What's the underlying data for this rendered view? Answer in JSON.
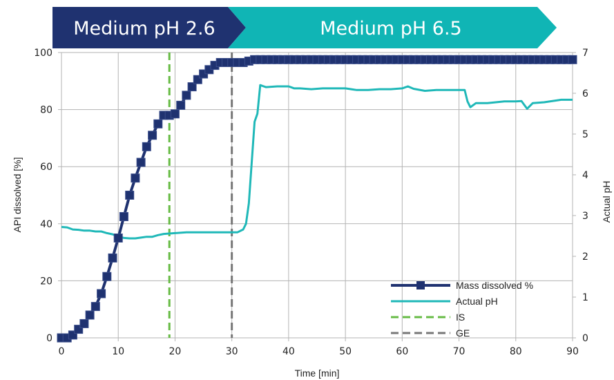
{
  "phases": [
    {
      "label": "Medium pH 2.6",
      "color": "#1f3270",
      "x_start": 0,
      "x_end": 30
    },
    {
      "label": "Medium pH 6.5",
      "color": "#10b5b5",
      "x_start": 30,
      "x_end": 90
    }
  ],
  "chart_data": {
    "type": "line",
    "xlabel": "Time [min]",
    "ylabel": "API dissolved [%]",
    "y2label": "Actual pH",
    "xlim": [
      0,
      90
    ],
    "ylim": [
      0,
      100
    ],
    "y2lim": [
      0,
      7
    ],
    "x_ticks": [
      0,
      10,
      20,
      30,
      40,
      50,
      60,
      70,
      80,
      90
    ],
    "y_ticks": [
      0,
      20,
      40,
      60,
      80,
      100
    ],
    "y2_ticks": [
      0,
      1,
      2,
      3,
      4,
      5,
      6,
      7
    ],
    "grid": true,
    "legend_position": "bottom-right",
    "series": [
      {
        "name": "Mass dissolved %",
        "color": "#1f3270",
        "axis": "left",
        "style": "line-square-markers",
        "x": [
          0,
          1,
          2,
          3,
          4,
          5,
          6,
          7,
          8,
          9,
          10,
          11,
          12,
          13,
          14,
          15,
          16,
          17,
          18,
          19,
          20,
          21,
          22,
          23,
          24,
          25,
          26,
          27,
          28,
          29,
          30,
          31,
          32,
          33,
          34,
          35,
          36,
          37,
          38,
          39,
          40,
          41,
          42,
          43,
          44,
          45,
          46,
          47,
          48,
          49,
          50,
          51,
          52,
          53,
          54,
          55,
          56,
          57,
          58,
          59,
          60,
          61,
          62,
          63,
          64,
          65,
          66,
          67,
          68,
          69,
          70,
          71,
          72,
          73,
          74,
          75,
          76,
          77,
          78,
          79,
          80,
          81,
          82,
          83,
          84,
          85,
          86,
          87,
          88,
          89,
          90
        ],
        "y": [
          0,
          0,
          1,
          3,
          5,
          8,
          11,
          15.5,
          21.5,
          28,
          35,
          42.5,
          50,
          56,
          61.5,
          67,
          71,
          75,
          78,
          78,
          78.5,
          81.5,
          85,
          88,
          90.5,
          92.5,
          94,
          95.5,
          96.5,
          96.5,
          96.5,
          96.5,
          96.5,
          97,
          97.5,
          97.5,
          97.5,
          97.5,
          97.5,
          97.5,
          97.5,
          97.5,
          97.5,
          97.5,
          97.5,
          97.5,
          97.5,
          97.5,
          97.5,
          97.5,
          97.5,
          97.5,
          97.5,
          97.5,
          97.5,
          97.5,
          97.5,
          97.5,
          97.5,
          97.5,
          97.5,
          97.5,
          97.5,
          97.5,
          97.5,
          97.5,
          97.5,
          97.5,
          97.5,
          97.5,
          97.5,
          97.5,
          97.5,
          97.5,
          97.5,
          97.5,
          97.5,
          97.5,
          97.5,
          97.5,
          97.5,
          97.5,
          97.5,
          97.5,
          97.5,
          97.5,
          97.5,
          97.5,
          97.5,
          97.5,
          97.5
        ]
      },
      {
        "name": "Actual pH",
        "color": "#1fb8b8",
        "axis": "right",
        "style": "line",
        "x": [
          0,
          1,
          2,
          3,
          4,
          5,
          6,
          7,
          8,
          9,
          10,
          11,
          12,
          13,
          14,
          15,
          16,
          17,
          18,
          19,
          20,
          22,
          24,
          26,
          28,
          30,
          31,
          32,
          32.5,
          33,
          34,
          34.5,
          35,
          36,
          38,
          40,
          41,
          42,
          44,
          46,
          48,
          50,
          52,
          54,
          56,
          58,
          60,
          61,
          62,
          64,
          66,
          68,
          70,
          71,
          71.5,
          72,
          73,
          75,
          78,
          80,
          81,
          82,
          83,
          85,
          88,
          90
        ],
        "y": [
          2.72,
          2.71,
          2.66,
          2.65,
          2.63,
          2.63,
          2.61,
          2.61,
          2.57,
          2.54,
          2.49,
          2.45,
          2.44,
          2.44,
          2.46,
          2.48,
          2.48,
          2.52,
          2.55,
          2.56,
          2.57,
          2.59,
          2.59,
          2.59,
          2.59,
          2.59,
          2.59,
          2.66,
          2.8,
          3.3,
          5.3,
          5.5,
          6.2,
          6.15,
          6.17,
          6.17,
          6.12,
          6.12,
          6.1,
          6.12,
          6.12,
          6.12,
          6.08,
          6.08,
          6.1,
          6.1,
          6.12,
          6.17,
          6.11,
          6.06,
          6.08,
          6.08,
          6.08,
          6.08,
          5.8,
          5.66,
          5.76,
          5.76,
          5.8,
          5.8,
          5.81,
          5.62,
          5.76,
          5.78,
          5.84,
          5.84
        ]
      },
      {
        "name": "IS",
        "color": "#66bb44",
        "axis": "left",
        "style": "dashed-vertical",
        "x": 19
      },
      {
        "name": "GE",
        "color": "#777777",
        "axis": "left",
        "style": "dashed-vertical",
        "x": 30
      }
    ]
  }
}
